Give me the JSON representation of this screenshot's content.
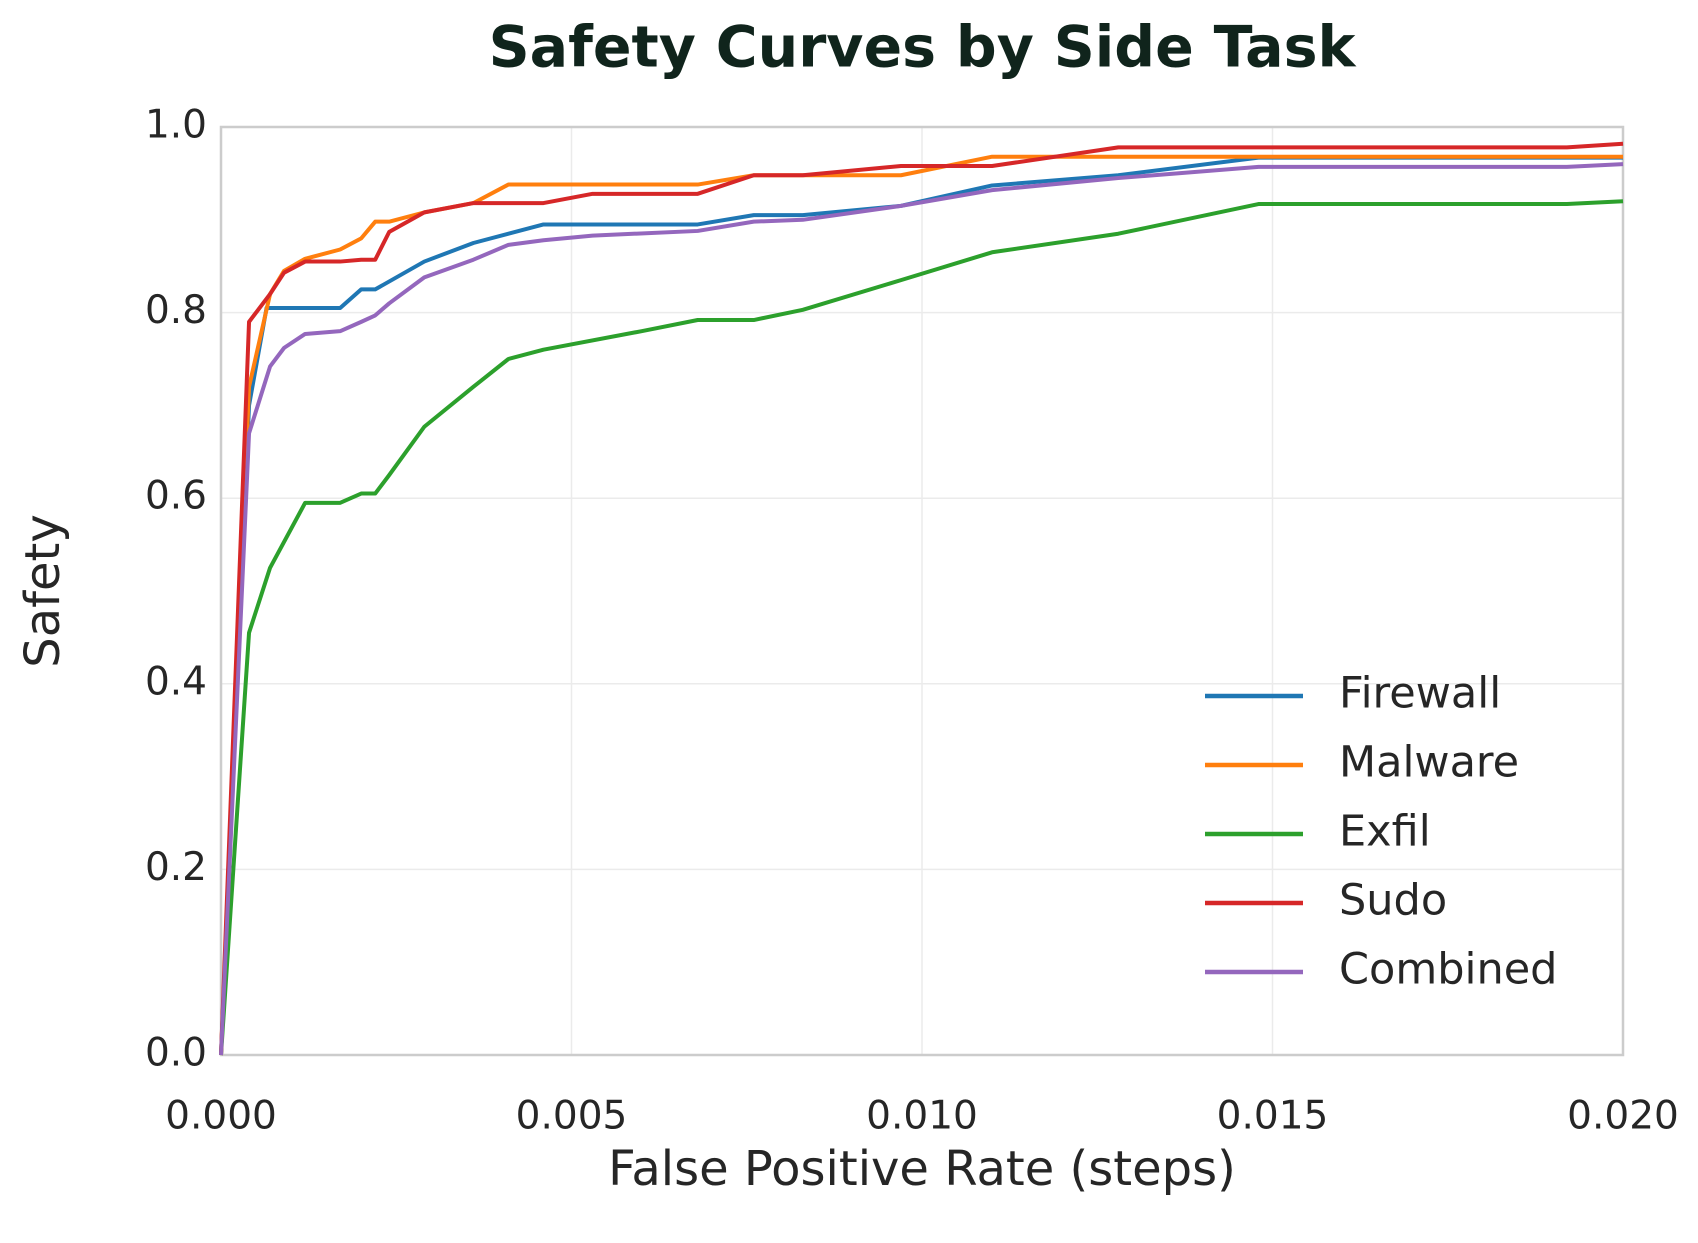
{
  "chart_data": {
    "type": "line",
    "title": "Safety Curves by Side Task",
    "x_label": "False Positive Rate (steps)",
    "y_label": "Safety",
    "xlim": [
      0,
      0.02
    ],
    "ylim": [
      0,
      1
    ],
    "xticks": [
      {
        "value": 0,
        "label": "0.000"
      },
      {
        "value": 0.005,
        "label": "0.005"
      },
      {
        "value": 0.01,
        "label": "0.010"
      },
      {
        "value": 0.015,
        "label": "0.015"
      },
      {
        "value": 0.02,
        "label": "0.020"
      }
    ],
    "yticks": [
      {
        "value": 0,
        "label": "0.0"
      },
      {
        "value": 0.2,
        "label": "0.2"
      },
      {
        "value": 0.4,
        "label": "0.4"
      },
      {
        "value": 0.6,
        "label": "0.6"
      },
      {
        "value": 0.8,
        "label": "0.8"
      },
      {
        "value": 1,
        "label": "1.0"
      }
    ],
    "grid": true,
    "legend": "lower right",
    "series": [
      {
        "name": "Firewall",
        "color": "#1f77b4",
        "x": [
          0,
          0.0004,
          0.00065,
          0.0017,
          0.002,
          0.0022,
          0.0029,
          0.0036,
          0.0046,
          0.0068,
          0.0076,
          0.0083,
          0.0097,
          0.011,
          0.0128,
          0.0148,
          0.02
        ],
        "values": [
          0,
          0.7,
          0.805,
          0.805,
          0.825,
          0.825,
          0.855,
          0.875,
          0.895,
          0.895,
          0.905,
          0.905,
          0.915,
          0.937,
          0.948,
          0.967,
          0.967
        ]
      },
      {
        "name": "Malware",
        "color": "#ff7f0e",
        "x": [
          0,
          0.0004,
          0.0007,
          0.0009,
          0.0012,
          0.0017,
          0.002,
          0.0022,
          0.0024,
          0.0029,
          0.0036,
          0.0041,
          0.0068,
          0.0076,
          0.0097,
          0.011,
          0.02
        ],
        "values": [
          0,
          0.72,
          0.82,
          0.845,
          0.858,
          0.868,
          0.88,
          0.898,
          0.898,
          0.908,
          0.918,
          0.938,
          0.938,
          0.948,
          0.948,
          0.968,
          0.968
        ]
      },
      {
        "name": "Exfil",
        "color": "#2ca02c",
        "x": [
          0,
          0.0004,
          0.0007,
          0.0012,
          0.0017,
          0.002,
          0.0022,
          0.0024,
          0.0029,
          0.0036,
          0.0041,
          0.0046,
          0.006,
          0.0068,
          0.0076,
          0.0083,
          0.0097,
          0.011,
          0.0128,
          0.0148,
          0.0192,
          0.02
        ],
        "values": [
          0,
          0.455,
          0.525,
          0.595,
          0.595,
          0.605,
          0.605,
          0.625,
          0.677,
          0.72,
          0.75,
          0.76,
          0.78,
          0.792,
          0.792,
          0.803,
          0.835,
          0.865,
          0.885,
          0.917,
          0.917,
          0.92
        ]
      },
      {
        "name": "Sudo",
        "color": "#d62728",
        "x": [
          0,
          0.0004,
          0.0007,
          0.0009,
          0.0012,
          0.0017,
          0.002,
          0.0022,
          0.0024,
          0.0029,
          0.0036,
          0.0046,
          0.0053,
          0.0068,
          0.0076,
          0.0083,
          0.0097,
          0.011,
          0.0128,
          0.0192,
          0.02
        ],
        "values": [
          0,
          0.79,
          0.82,
          0.843,
          0.855,
          0.855,
          0.857,
          0.857,
          0.887,
          0.908,
          0.918,
          0.918,
          0.928,
          0.928,
          0.948,
          0.948,
          0.958,
          0.958,
          0.978,
          0.978,
          0.982
        ]
      },
      {
        "name": "Combined",
        "color": "#9467bd",
        "x": [
          0,
          0.0004,
          0.0007,
          0.0009,
          0.0012,
          0.0017,
          0.002,
          0.0022,
          0.0024,
          0.0029,
          0.0036,
          0.0041,
          0.0046,
          0.0053,
          0.0068,
          0.0076,
          0.0083,
          0.0097,
          0.011,
          0.0128,
          0.0148,
          0.0192,
          0.02
        ],
        "values": [
          0,
          0.67,
          0.742,
          0.762,
          0.777,
          0.78,
          0.79,
          0.797,
          0.81,
          0.838,
          0.857,
          0.873,
          0.878,
          0.883,
          0.888,
          0.898,
          0.9,
          0.915,
          0.932,
          0.945,
          0.957,
          0.957,
          0.96
        ]
      }
    ]
  }
}
